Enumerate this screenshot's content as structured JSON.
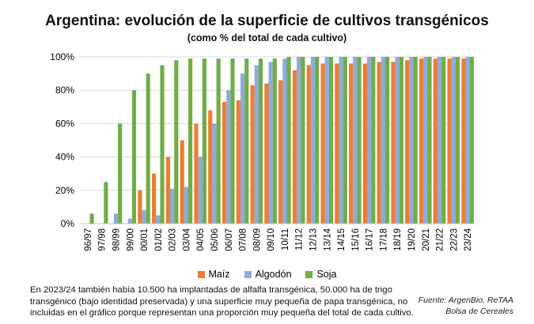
{
  "chart_data": {
    "type": "bar",
    "title": "Argentina: evolución de la superficie de cultivos transgénicos",
    "subtitle": "(como % del total de cada cultivo)",
    "categories": [
      "96/97",
      "97/98",
      "98/99",
      "99/00",
      "00/01",
      "01/02",
      "02/03",
      "03/04",
      "04/05",
      "05/06",
      "06/07",
      "07/08",
      "08/09",
      "09/10",
      "10/11",
      "11/12",
      "12/13",
      "13/14",
      "14/15",
      "15/16",
      "16/17",
      "17/18",
      "18/19",
      "19/20",
      "20/21",
      "21/22",
      "22/23",
      "23/24"
    ],
    "series": [
      {
        "name": "Maíz",
        "color": "#ED7D31",
        "values": [
          0,
          0,
          0,
          0,
          20,
          30,
          40,
          50,
          60,
          68,
          73,
          74,
          83,
          84,
          86,
          92,
          95,
          96,
          96,
          96,
          96,
          97,
          97,
          98,
          99,
          99,
          99,
          99
        ]
      },
      {
        "name": "Algodón",
        "color": "#8FAADC",
        "values": [
          0,
          0,
          6,
          3,
          8,
          5,
          21,
          22,
          40,
          60,
          80,
          90,
          95,
          97,
          99,
          100,
          100,
          100,
          100,
          100,
          100,
          100,
          100,
          100,
          100,
          100,
          100,
          100
        ]
      },
      {
        "name": "Soja",
        "color": "#70AD47",
        "values": [
          6,
          25,
          60,
          80,
          90,
          95,
          98,
          99,
          99,
          99,
          99,
          99,
          99,
          99,
          100,
          100,
          100,
          100,
          100,
          100,
          100,
          100,
          100,
          100,
          100,
          100,
          100,
          100
        ]
      }
    ],
    "ylim": [
      0,
      100
    ],
    "yticks": [
      "0%",
      "20%",
      "40%",
      "60%",
      "80%",
      "100%"
    ],
    "grid": true,
    "legend_position": "bottom"
  },
  "footnote": "En 2023/24 también había 10.500 ha implantadas de alfalfa transgénica, 50.000 ha de trigo transgénico (bajo identidad preservada) y una superficie muy pequeña de papa transgénica, no incluidas en el gráfico porque representan una proporción muy pequeña del total de cada cultivo.",
  "source": {
    "line1": "Fuente: ArgenBio, ReTAA",
    "line2": "Bolsa de Cereales"
  }
}
